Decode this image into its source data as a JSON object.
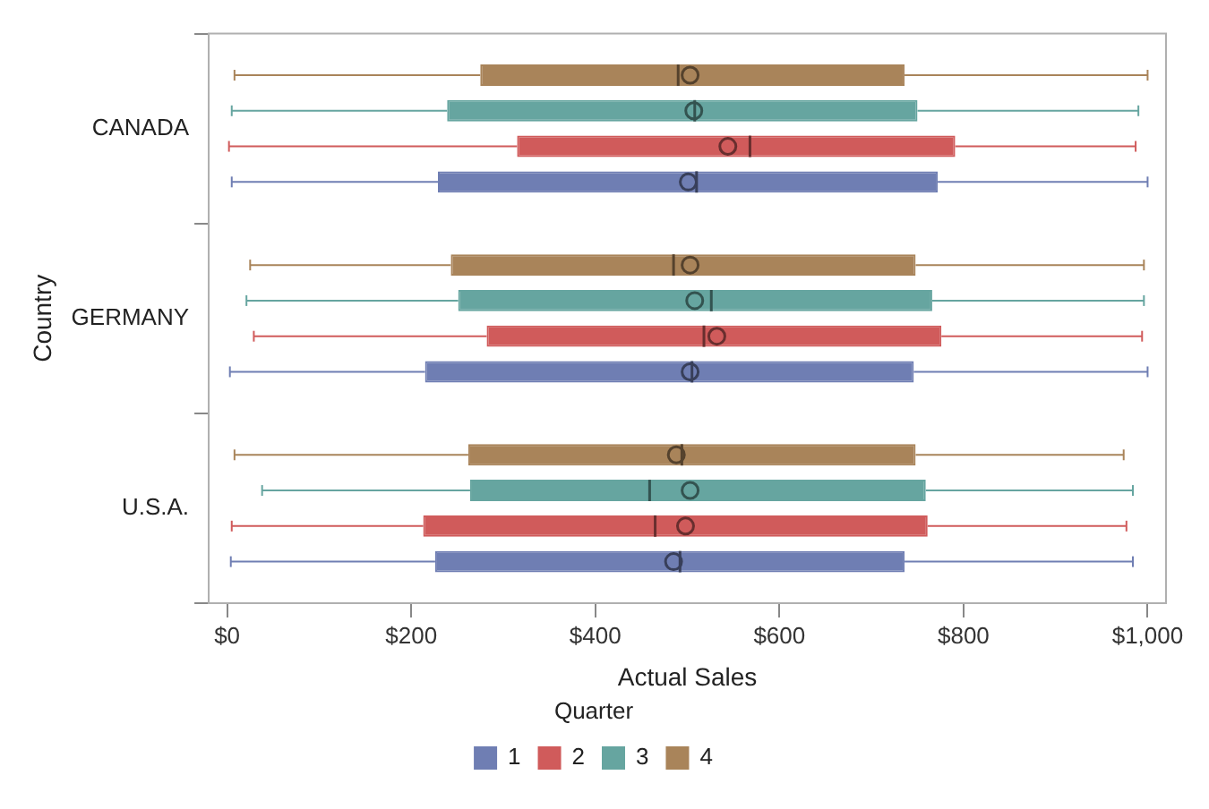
{
  "chart_data": {
    "type": "box",
    "orientation": "horizontal",
    "xlabel": "Actual Sales",
    "ylabel": "Country",
    "legend_title": "Quarter",
    "legend": "bottom",
    "grid": false,
    "categories": [
      "CANADA",
      "GERMANY",
      "U.S.A."
    ],
    "xlim": [
      -20,
      1020
    ],
    "xticks": [
      {
        "value": 0,
        "label": "$0"
      },
      {
        "value": 200,
        "label": "$200"
      },
      {
        "value": 400,
        "label": "$400"
      },
      {
        "value": 600,
        "label": "$600"
      },
      {
        "value": 800,
        "label": "$800"
      },
      {
        "value": 1000,
        "label": "$1,000"
      }
    ],
    "series": [
      {
        "name": "1",
        "color": "#6f7eb3",
        "boxes": [
          {
            "low": 5,
            "q1": 229,
            "median": 510,
            "q3": 772,
            "high": 1000,
            "mean": 501
          },
          {
            "low": 3,
            "q1": 215,
            "median": 505,
            "q3": 746,
            "high": 1000,
            "mean": 503
          },
          {
            "low": 4,
            "q1": 226,
            "median": 492,
            "q3": 736,
            "high": 984,
            "mean": 485
          }
        ]
      },
      {
        "name": "2",
        "color": "#d05b5b",
        "boxes": [
          {
            "low": 2,
            "q1": 315,
            "median": 568,
            "q3": 791,
            "high": 987,
            "mean": 544
          },
          {
            "low": 29,
            "q1": 282,
            "median": 518,
            "q3": 776,
            "high": 994,
            "mean": 532
          },
          {
            "low": 5,
            "q1": 213,
            "median": 465,
            "q3": 761,
            "high": 977,
            "mean": 498
          }
        ]
      },
      {
        "name": "3",
        "color": "#66a5a0",
        "boxes": [
          {
            "low": 5,
            "q1": 239,
            "median": 508,
            "q3": 750,
            "high": 990,
            "mean": 507
          },
          {
            "low": 21,
            "q1": 251,
            "median": 526,
            "q3": 766,
            "high": 996,
            "mean": 508
          },
          {
            "low": 38,
            "q1": 264,
            "median": 459,
            "q3": 759,
            "high": 984,
            "mean": 503
          }
        ]
      },
      {
        "name": "4",
        "color": "#a9845a",
        "boxes": [
          {
            "low": 8,
            "q1": 275,
            "median": 490,
            "q3": 736,
            "high": 1000,
            "mean": 503
          },
          {
            "low": 25,
            "q1": 243,
            "median": 485,
            "q3": 748,
            "high": 996,
            "mean": 503
          },
          {
            "low": 8,
            "q1": 262,
            "median": 494,
            "q3": 748,
            "high": 974,
            "mean": 488
          }
        ]
      }
    ]
  }
}
